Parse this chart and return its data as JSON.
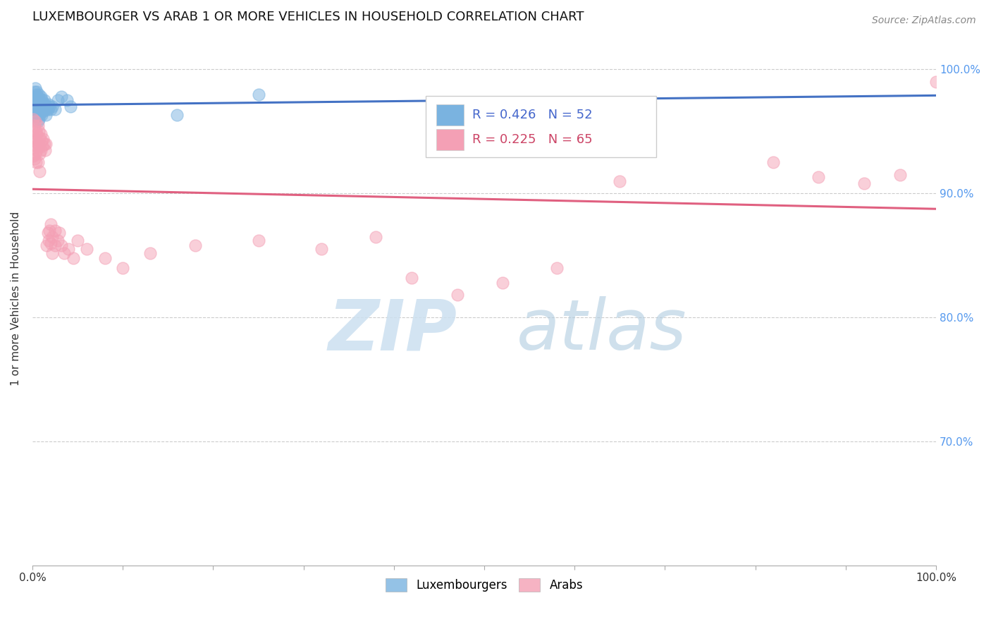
{
  "title": "LUXEMBOURGER VS ARAB 1 OR MORE VEHICLES IN HOUSEHOLD CORRELATION CHART",
  "source": "Source: ZipAtlas.com",
  "ylabel": "1 or more Vehicles in Household",
  "legend_r_blue": "R = 0.426",
  "legend_n_blue": "N = 52",
  "legend_r_pink": "R = 0.225",
  "legend_n_pink": "N = 65",
  "blue_color": "#7ab3e0",
  "pink_color": "#f4a0b5",
  "blue_line_color": "#4472c4",
  "pink_line_color": "#e06080",
  "xlim": [
    0,
    1.0
  ],
  "ylim": [
    0.6,
    1.03
  ],
  "yticks": [
    0.7,
    0.8,
    0.9,
    1.0
  ],
  "ytick_labels_right": [
    "70.0%",
    "80.0%",
    "90.0%",
    "100.0%"
  ],
  "blue_scatter": [
    [
      0.001,
      0.978
    ],
    [
      0.002,
      0.982
    ],
    [
      0.002,
      0.975
    ],
    [
      0.003,
      0.985
    ],
    [
      0.003,
      0.977
    ],
    [
      0.003,
      0.97
    ],
    [
      0.004,
      0.98
    ],
    [
      0.004,
      0.972
    ],
    [
      0.004,
      0.965
    ],
    [
      0.005,
      0.982
    ],
    [
      0.005,
      0.975
    ],
    [
      0.005,
      0.968
    ],
    [
      0.005,
      0.962
    ],
    [
      0.006,
      0.978
    ],
    [
      0.006,
      0.972
    ],
    [
      0.006,
      0.965
    ],
    [
      0.006,
      0.958
    ],
    [
      0.007,
      0.98
    ],
    [
      0.007,
      0.974
    ],
    [
      0.007,
      0.968
    ],
    [
      0.007,
      0.96
    ],
    [
      0.008,
      0.975
    ],
    [
      0.008,
      0.97
    ],
    [
      0.008,
      0.963
    ],
    [
      0.009,
      0.978
    ],
    [
      0.009,
      0.972
    ],
    [
      0.009,
      0.966
    ],
    [
      0.01,
      0.976
    ],
    [
      0.01,
      0.97
    ],
    [
      0.01,
      0.963
    ],
    [
      0.011,
      0.974
    ],
    [
      0.011,
      0.968
    ],
    [
      0.012,
      0.972
    ],
    [
      0.012,
      0.966
    ],
    [
      0.013,
      0.975
    ],
    [
      0.013,
      0.968
    ],
    [
      0.014,
      0.972
    ],
    [
      0.015,
      0.968
    ],
    [
      0.015,
      0.963
    ],
    [
      0.016,
      0.97
    ],
    [
      0.017,
      0.968
    ],
    [
      0.018,
      0.972
    ],
    [
      0.019,
      0.97
    ],
    [
      0.02,
      0.968
    ],
    [
      0.022,
      0.97
    ],
    [
      0.025,
      0.968
    ],
    [
      0.028,
      0.975
    ],
    [
      0.032,
      0.978
    ],
    [
      0.038,
      0.975
    ],
    [
      0.042,
      0.97
    ],
    [
      0.16,
      0.963
    ],
    [
      0.25,
      0.98
    ]
  ],
  "pink_scatter": [
    [
      0.001,
      0.96
    ],
    [
      0.001,
      0.945
    ],
    [
      0.001,
      0.93
    ],
    [
      0.002,
      0.955
    ],
    [
      0.002,
      0.942
    ],
    [
      0.002,
      0.928
    ],
    [
      0.003,
      0.958
    ],
    [
      0.003,
      0.944
    ],
    [
      0.003,
      0.932
    ],
    [
      0.004,
      0.95
    ],
    [
      0.004,
      0.938
    ],
    [
      0.004,
      0.925
    ],
    [
      0.005,
      0.948
    ],
    [
      0.005,
      0.935
    ],
    [
      0.006,
      0.955
    ],
    [
      0.006,
      0.94
    ],
    [
      0.006,
      0.925
    ],
    [
      0.007,
      0.95
    ],
    [
      0.007,
      0.938
    ],
    [
      0.008,
      0.945
    ],
    [
      0.008,
      0.932
    ],
    [
      0.008,
      0.918
    ],
    [
      0.009,
      0.948
    ],
    [
      0.009,
      0.935
    ],
    [
      0.01,
      0.942
    ],
    [
      0.011,
      0.938
    ],
    [
      0.012,
      0.944
    ],
    [
      0.013,
      0.94
    ],
    [
      0.014,
      0.935
    ],
    [
      0.015,
      0.94
    ],
    [
      0.016,
      0.858
    ],
    [
      0.017,
      0.868
    ],
    [
      0.018,
      0.862
    ],
    [
      0.019,
      0.87
    ],
    [
      0.02,
      0.875
    ],
    [
      0.02,
      0.86
    ],
    [
      0.022,
      0.865
    ],
    [
      0.022,
      0.852
    ],
    [
      0.025,
      0.87
    ],
    [
      0.025,
      0.858
    ],
    [
      0.028,
      0.862
    ],
    [
      0.03,
      0.868
    ],
    [
      0.032,
      0.858
    ],
    [
      0.035,
      0.852
    ],
    [
      0.04,
      0.855
    ],
    [
      0.045,
      0.848
    ],
    [
      0.05,
      0.862
    ],
    [
      0.06,
      0.855
    ],
    [
      0.08,
      0.848
    ],
    [
      0.1,
      0.84
    ],
    [
      0.13,
      0.852
    ],
    [
      0.18,
      0.858
    ],
    [
      0.25,
      0.862
    ],
    [
      0.32,
      0.855
    ],
    [
      0.38,
      0.865
    ],
    [
      0.42,
      0.832
    ],
    [
      0.47,
      0.818
    ],
    [
      0.52,
      0.828
    ],
    [
      0.58,
      0.84
    ],
    [
      0.65,
      0.91
    ],
    [
      0.82,
      0.925
    ],
    [
      0.87,
      0.913
    ],
    [
      0.92,
      0.908
    ],
    [
      0.96,
      0.915
    ],
    [
      1.0,
      0.99
    ]
  ]
}
